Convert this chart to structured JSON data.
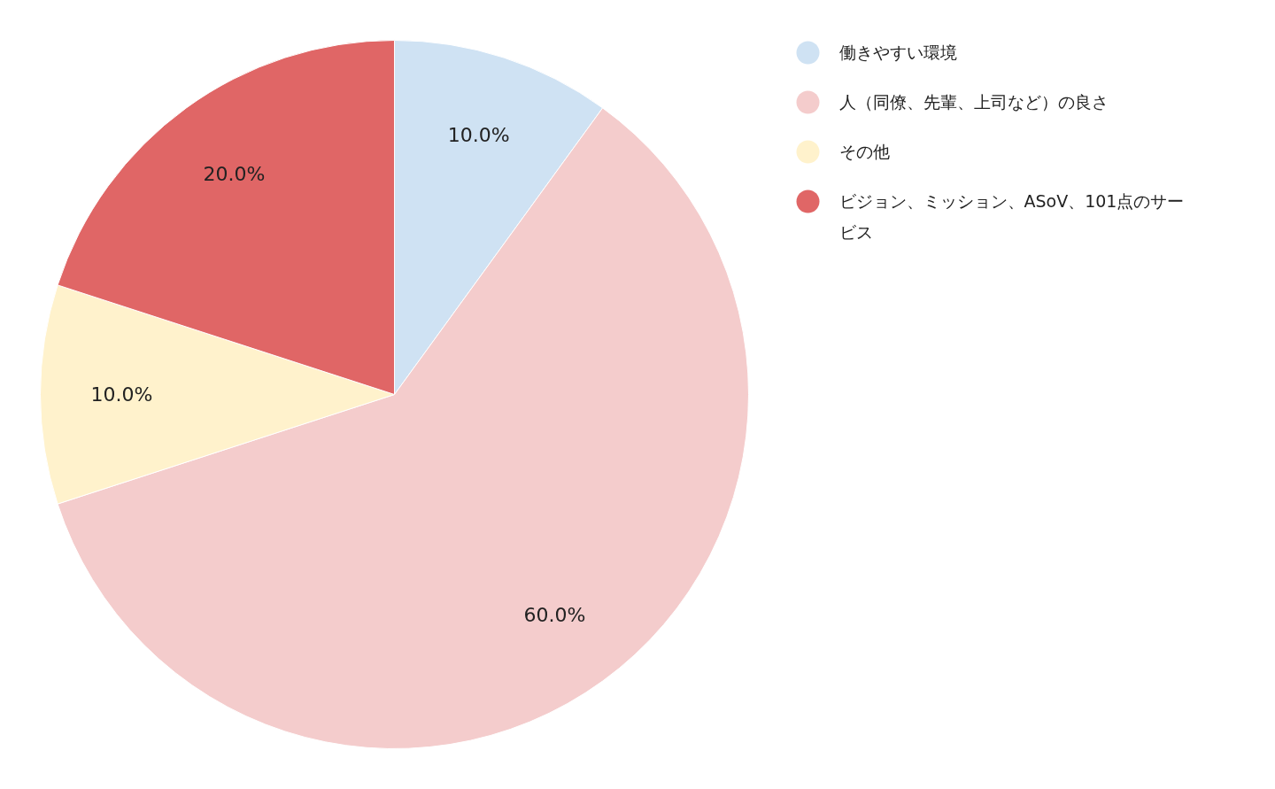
{
  "chart_data": {
    "type": "pie",
    "categories": [
      "働きやすい環境",
      "人（同僚、先輩、上司など）の良さ",
      "その他",
      "ビジョン、ミッション、ASoV、101点のサービス"
    ],
    "values": [
      10,
      60,
      10,
      20
    ],
    "colors": [
      "#cfe2f3",
      "#f4cccc",
      "#fff2cc",
      "#e06666"
    ],
    "value_labels": [
      "10.0%",
      "60.0%",
      "10.0%",
      "20.0%"
    ],
    "legend": "top right"
  }
}
